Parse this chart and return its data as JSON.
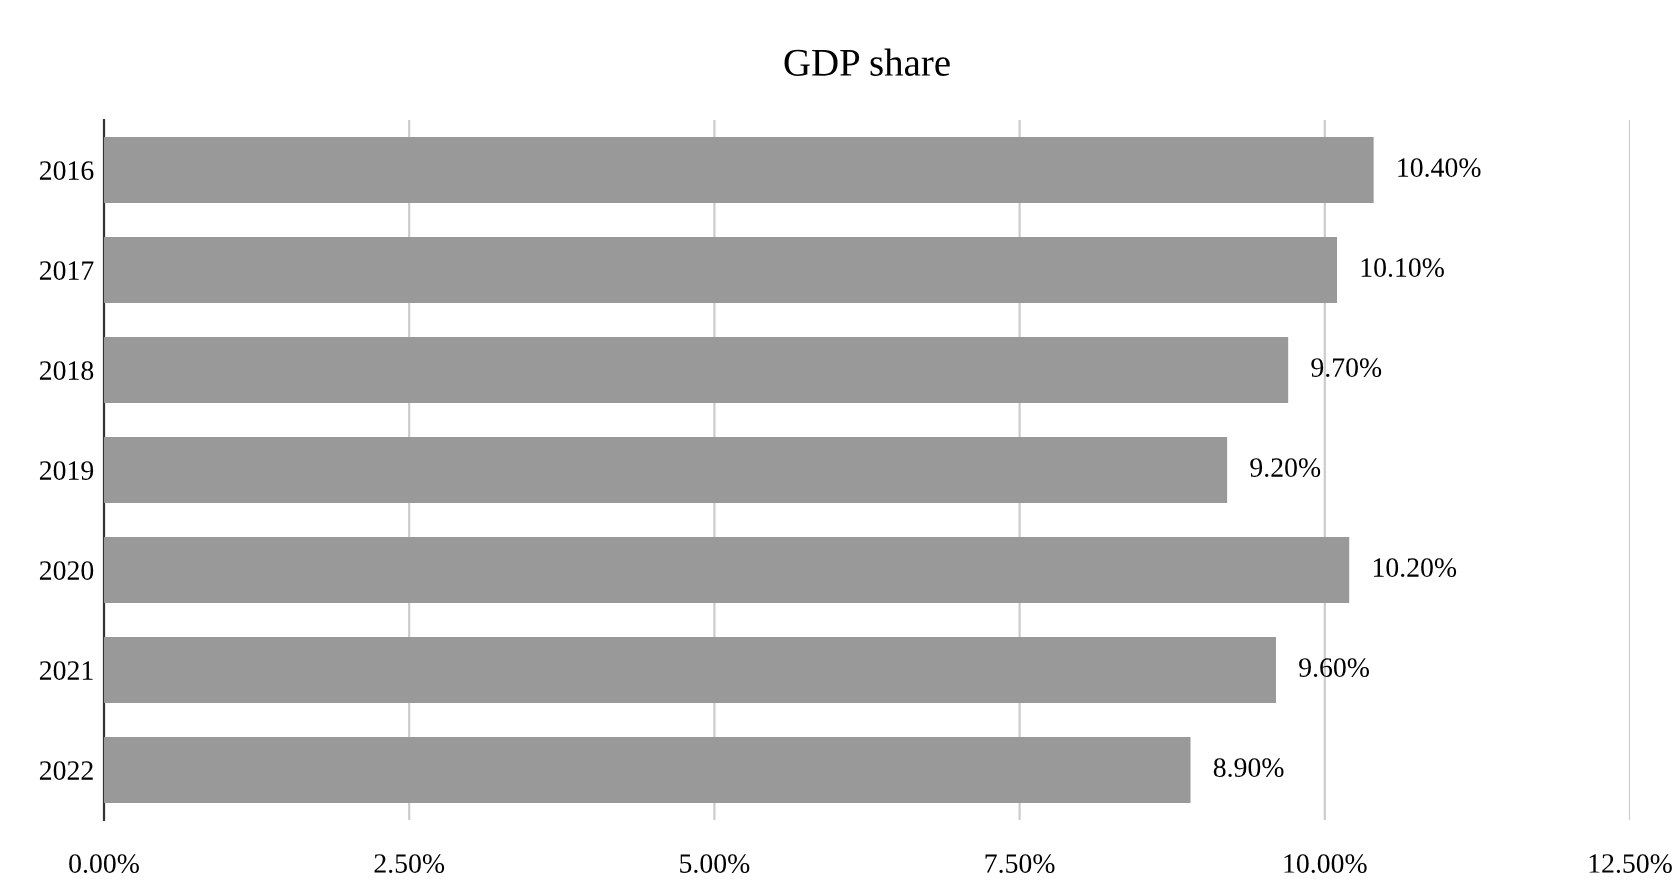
{
  "chart_data": {
    "type": "bar",
    "orientation": "horizontal",
    "title": "GDP share",
    "categories": [
      "2016",
      "2017",
      "2018",
      "2019",
      "2020",
      "2021",
      "2022"
    ],
    "values": [
      10.4,
      10.1,
      9.7,
      9.2,
      10.2,
      9.6,
      8.9
    ],
    "value_labels": [
      "10.40%",
      "10.10%",
      "9.70%",
      "9.20%",
      "10.20%",
      "9.60%",
      "8.90%"
    ],
    "color": "#999999",
    "xlim": [
      0,
      12.5
    ],
    "xticks": [
      {
        "value": 0,
        "label": "0.00%"
      },
      {
        "value": 2.5,
        "label": "2.50%"
      },
      {
        "value": 5,
        "label": "5.00%"
      },
      {
        "value": 7.5,
        "label": "7.50%"
      },
      {
        "value": 10,
        "label": "10.00%"
      },
      {
        "value": 12.5,
        "label": "12.50%"
      }
    ],
    "grid": "x",
    "legend": false
  }
}
